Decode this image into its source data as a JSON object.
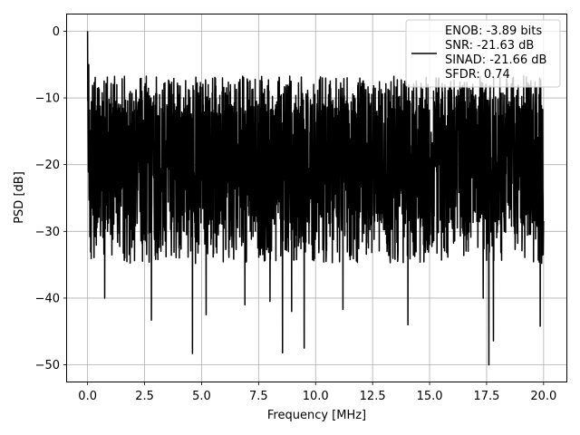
{
  "chart_data": {
    "type": "line",
    "title": "",
    "xlabel": "Frequency [MHz]",
    "ylabel": "PSD [dB]",
    "xlim": [
      -0.9,
      21.0
    ],
    "ylim": [
      -52.5,
      2.5
    ],
    "grid": true,
    "legend_position": "top-right",
    "x_ticks": [
      0.0,
      2.5,
      5.0,
      7.5,
      10.0,
      12.5,
      15.0,
      17.5,
      20.0
    ],
    "x_tick_labels": [
      "0.0",
      "2.5",
      "5.0",
      "7.5",
      "10.0",
      "12.5",
      "15.0",
      "17.5",
      "20.0"
    ],
    "y_ticks": [
      0,
      -10,
      -20,
      -30,
      -40,
      -50
    ],
    "y_tick_labels": [
      "0",
      "−10",
      "−20",
      "−30",
      "−40",
      "−50"
    ],
    "legend": {
      "line_color": "#000000",
      "entries": [
        "ENOB: -3.89 bits",
        "SNR: -21.63 dB",
        "SINAD: -21.66 dB",
        "SFDR: 0.74"
      ]
    },
    "series": [
      {
        "color": "#000000",
        "x_start": 0.0,
        "x_end": 20.0,
        "noise_floor_db": -20,
        "noise_upper_db": -10,
        "noise_lower_db": -30,
        "peak": {
          "x": 0.0,
          "y": 0.0
        },
        "deep_minima": [
          {
            "x": 0.75,
            "y": -40.0
          },
          {
            "x": 2.8,
            "y": -43.3
          },
          {
            "x": 4.6,
            "y": -48.3
          },
          {
            "x": 5.2,
            "y": -42.5
          },
          {
            "x": 6.9,
            "y": -41.0
          },
          {
            "x": 8.0,
            "y": -40.5
          },
          {
            "x": 8.55,
            "y": -48.2
          },
          {
            "x": 8.95,
            "y": -42.0
          },
          {
            "x": 9.5,
            "y": -47.5
          },
          {
            "x": 11.2,
            "y": -41.7
          },
          {
            "x": 14.05,
            "y": -44.0
          },
          {
            "x": 17.35,
            "y": -40.0
          },
          {
            "x": 17.6,
            "y": -50.0
          },
          {
            "x": 17.8,
            "y": -46.4
          },
          {
            "x": 19.85,
            "y": -44.2
          }
        ]
      }
    ]
  }
}
